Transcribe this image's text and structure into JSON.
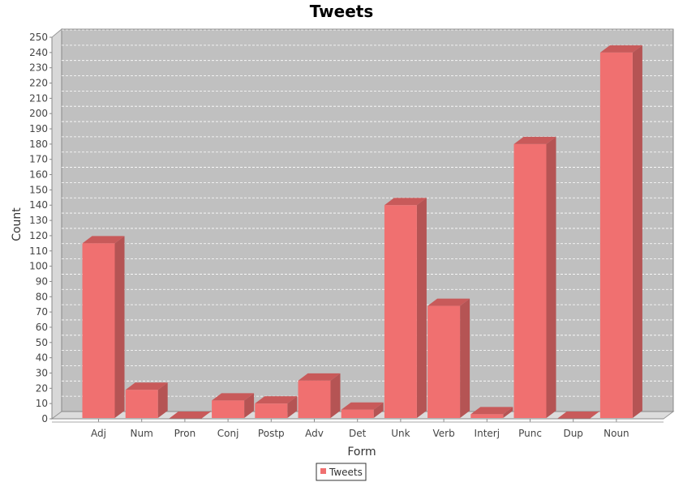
{
  "chart_data": {
    "type": "bar",
    "title": "Tweets",
    "xlabel": "Form",
    "ylabel": "Count",
    "categories": [
      "Adj",
      "Num",
      "Pron",
      "Conj",
      "Postp",
      "Adv",
      "Det",
      "Unk",
      "Verb",
      "Interj",
      "Punc",
      "Dup",
      "Noun"
    ],
    "series": [
      {
        "name": "Tweets",
        "values": [
          115,
          19,
          0,
          12,
          10,
          25,
          6,
          140,
          74,
          3,
          180,
          0,
          240
        ],
        "color": "#f07070"
      }
    ],
    "ylim": [
      0,
      250
    ],
    "ytick_step": 10,
    "grid": true,
    "legend_position": "bottom-center",
    "plot_background": "#c0c0c0"
  }
}
